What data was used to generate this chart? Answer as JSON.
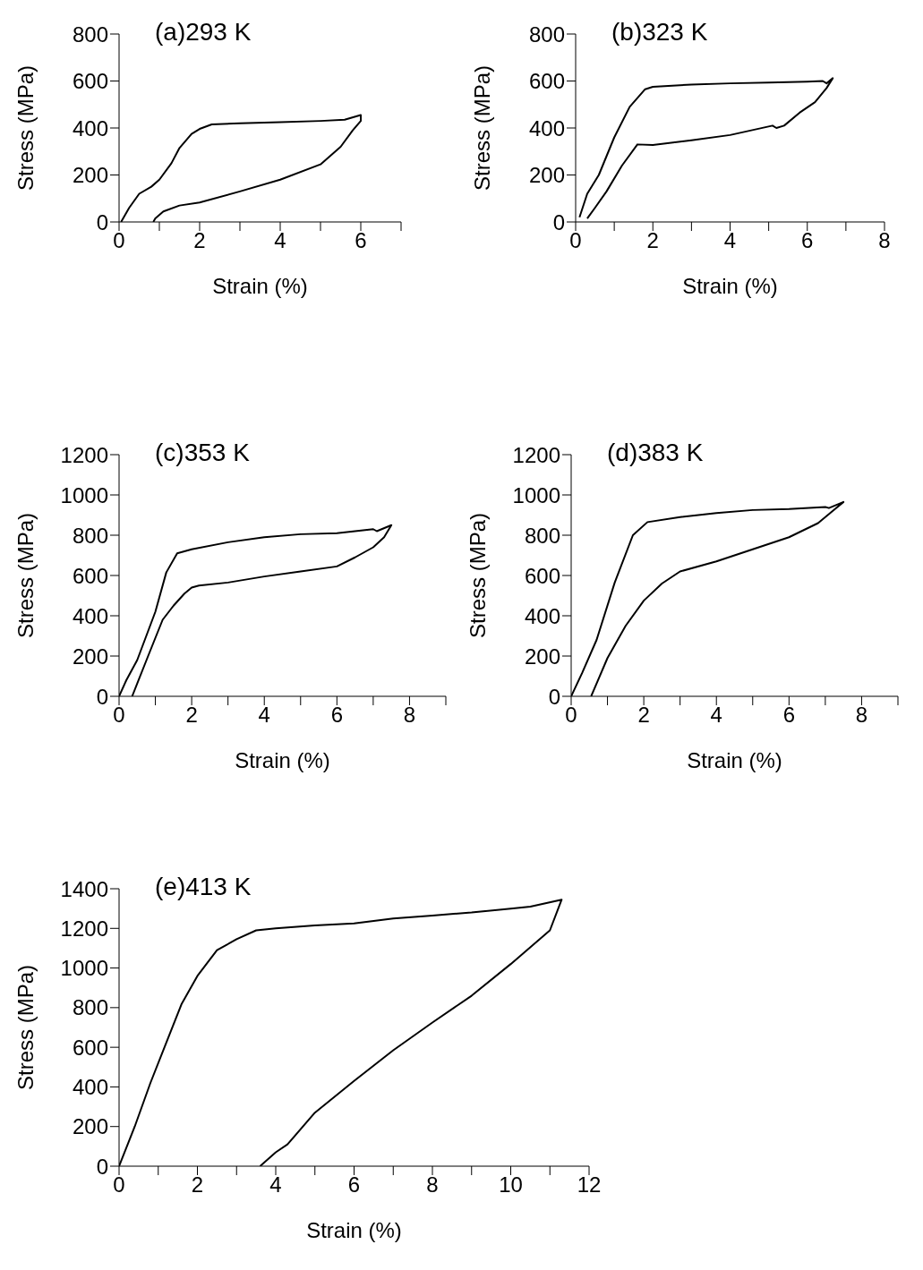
{
  "chart_data": [
    {
      "type": "line",
      "title": "(a)293 K",
      "xlabel": "Strain (%)",
      "ylabel": "Stress (MPa)",
      "xlim": [
        0,
        7
      ],
      "ylim": [
        0,
        800
      ],
      "xticks": [
        0,
        {
          "value": 1,
          "label": null
        },
        2,
        {
          "value": 3,
          "label": null
        },
        4,
        {
          "value": 5,
          "label": null
        },
        6,
        {
          "value": 7,
          "label": null
        }
      ],
      "yticks": [
        0,
        200,
        400,
        600,
        800
      ],
      "grid": false,
      "legend": false,
      "marker": "none",
      "line_style": "solid",
      "series": [
        {
          "color": "#000000",
          "x": [
            0.05,
            0.25,
            0.5,
            0.8,
            1,
            1.3,
            1.5,
            1.8,
            2,
            2.3,
            3,
            4,
            5,
            5.6,
            6,
            6,
            5.8,
            5.5,
            5,
            4,
            3,
            2,
            1.5,
            1.1,
            0.9,
            0.85
          ],
          "values": [
            0,
            60,
            120,
            150,
            180,
            250,
            315,
            375,
            396,
            415,
            420,
            425,
            430,
            435,
            455,
            430,
            390,
            320,
            245,
            180,
            130,
            83,
            70,
            45,
            15,
            0
          ]
        }
      ]
    },
    {
      "type": "line",
      "title": "(b)323 K",
      "xlabel": "Strain (%)",
      "ylabel": "Stress (MPa)",
      "xlim": [
        0,
        8
      ],
      "ylim": [
        0,
        800
      ],
      "xticks": [
        0,
        {
          "value": 1,
          "label": null
        },
        2,
        {
          "value": 3,
          "label": null
        },
        4,
        {
          "value": 5,
          "label": null
        },
        6,
        {
          "value": 7,
          "label": null
        },
        8
      ],
      "yticks": [
        0,
        200,
        400,
        600,
        800
      ],
      "grid": false,
      "legend": false,
      "marker": "none",
      "line_style": "solid",
      "series": [
        {
          "color": "#000000",
          "x": [
            0.1,
            0.3,
            0.6,
            1,
            1.4,
            1.8,
            2,
            3,
            4,
            5,
            6,
            6.4,
            6.5,
            6.66,
            6.5,
            6.2,
            5.8,
            5.4,
            5.2,
            5.1,
            4,
            3,
            2,
            1.6,
            1.2,
            0.8,
            0.5,
            0.3
          ],
          "values": [
            20,
            120,
            200,
            360,
            490,
            565,
            575,
            585,
            590,
            593,
            597,
            600,
            590,
            612,
            570,
            510,
            465,
            410,
            400,
            410,
            370,
            348,
            328,
            330,
            240,
            130,
            60,
            15
          ]
        }
      ]
    },
    {
      "type": "line",
      "title": "(c)353 K",
      "xlabel": "Strain (%)",
      "ylabel": "Stress (MPa)",
      "xlim": [
        0,
        9
      ],
      "ylim": [
        0,
        1200
      ],
      "xticks": [
        0,
        {
          "value": 1,
          "label": null
        },
        2,
        {
          "value": 3,
          "label": null
        },
        4,
        {
          "value": 5,
          "label": null
        },
        6,
        {
          "value": 7,
          "label": null
        },
        8,
        {
          "value": 9,
          "label": null
        }
      ],
      "yticks": [
        0,
        200,
        400,
        600,
        800,
        1000,
        1200
      ],
      "grid": false,
      "legend": false,
      "marker": "none",
      "line_style": "solid",
      "series": [
        {
          "color": "#000000",
          "x": [
            0,
            0.2,
            0.5,
            1,
            1.3,
            1.6,
            2,
            3,
            4,
            5,
            6,
            7,
            7.1,
            7.5,
            7.3,
            7,
            6.5,
            6,
            5,
            4,
            3,
            2.2,
            2,
            1.8,
            1.5,
            1.2,
            0.8,
            0.36
          ],
          "values": [
            0,
            80,
            180,
            420,
            615,
            710,
            730,
            765,
            790,
            805,
            810,
            830,
            820,
            850,
            790,
            740,
            690,
            645,
            620,
            595,
            565,
            550,
            540,
            510,
            450,
            380,
            200,
            0
          ]
        }
      ]
    },
    {
      "type": "line",
      "title": "(d)383 K",
      "xlabel": "Strain (%)",
      "ylabel": "Stress (MPa)",
      "xlim": [
        0,
        9
      ],
      "ylim": [
        0,
        1200
      ],
      "xticks": [
        0,
        {
          "value": 1,
          "label": null
        },
        2,
        {
          "value": 3,
          "label": null
        },
        4,
        {
          "value": 5,
          "label": null
        },
        6,
        {
          "value": 7,
          "label": null
        },
        8,
        {
          "value": 9,
          "label": null
        }
      ],
      "yticks": [
        0,
        200,
        400,
        600,
        800,
        1000,
        1200
      ],
      "grid": false,
      "legend": false,
      "marker": "none",
      "line_style": "solid",
      "series": [
        {
          "color": "#000000",
          "x": [
            0,
            0.3,
            0.7,
            1.2,
            1.7,
            2.1,
            3,
            4,
            5,
            6,
            7,
            7.1,
            7.5,
            7.2,
            6.8,
            6,
            5,
            4,
            3,
            2.5,
            2,
            1.5,
            1,
            0.55
          ],
          "values": [
            0,
            115,
            280,
            565,
            800,
            865,
            890,
            910,
            925,
            930,
            940,
            935,
            965,
            920,
            860,
            790,
            730,
            670,
            620,
            560,
            475,
            350,
            190,
            0
          ]
        }
      ]
    },
    {
      "type": "line",
      "title": "(e)413 K",
      "xlabel": "Strain (%)",
      "ylabel": "Stress (MPa)",
      "xlim": [
        0,
        12
      ],
      "ylim": [
        0,
        1400
      ],
      "xticks": [
        0,
        {
          "value": 1,
          "label": null
        },
        2,
        {
          "value": 3,
          "label": null
        },
        4,
        {
          "value": 5,
          "label": null
        },
        6,
        {
          "value": 7,
          "label": null
        },
        8,
        {
          "value": 9,
          "label": null
        },
        10,
        {
          "value": 11,
          "label": null
        },
        12
      ],
      "yticks": [
        0,
        200,
        400,
        600,
        800,
        1000,
        1200,
        1400
      ],
      "grid": false,
      "legend": false,
      "marker": "none",
      "line_style": "solid",
      "series": [
        {
          "color": "#000000",
          "x": [
            0,
            0.4,
            0.8,
            1.2,
            1.6,
            2,
            2.5,
            3,
            3.5,
            4,
            5,
            6,
            7,
            8,
            9,
            10,
            10.5,
            11.3,
            11,
            10,
            9,
            8,
            7,
            6,
            5,
            4.3,
            4,
            3.6
          ],
          "values": [
            0,
            200,
            420,
            620,
            820,
            960,
            1090,
            1145,
            1190,
            1200,
            1215,
            1225,
            1250,
            1265,
            1280,
            1300,
            1310,
            1345,
            1190,
            1020,
            860,
            725,
            585,
            430,
            270,
            110,
            70,
            0
          ]
        }
      ]
    }
  ]
}
